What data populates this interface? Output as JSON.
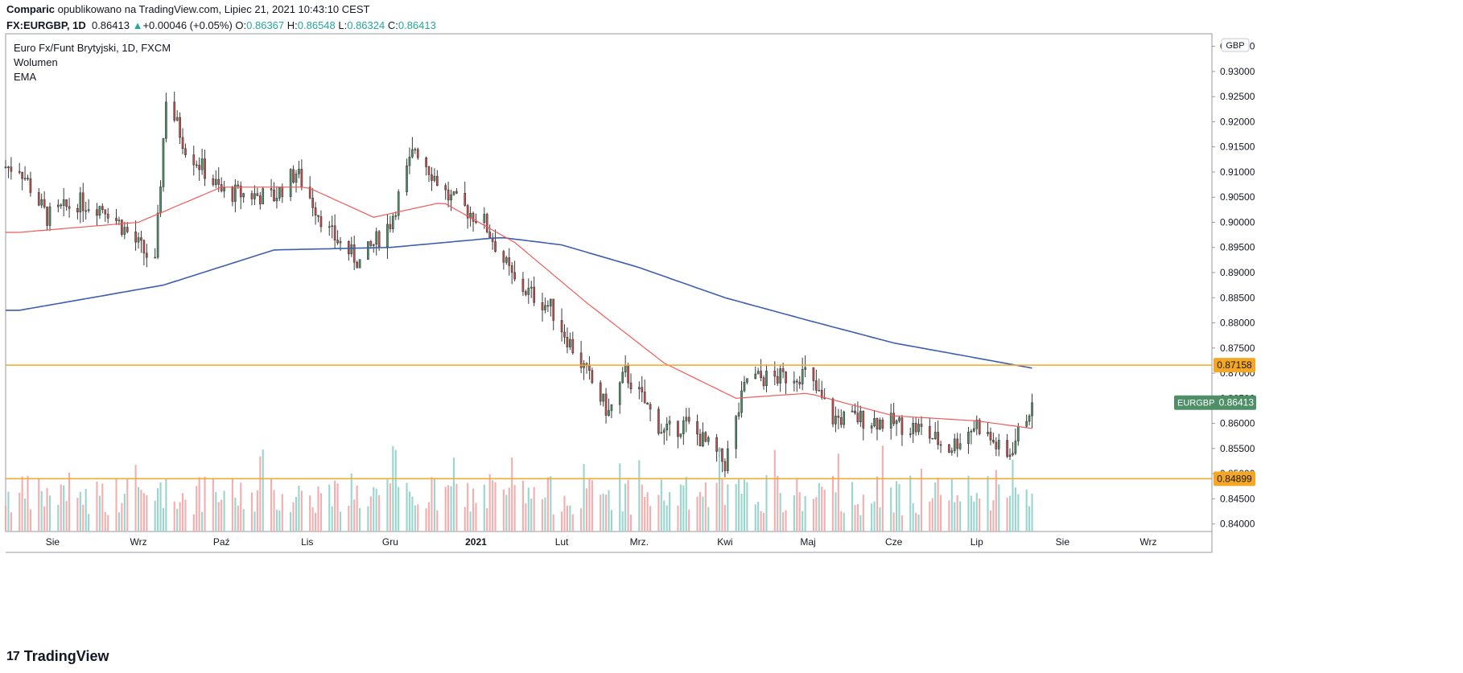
{
  "header": {
    "author": "Comparic",
    "published_text": "opublikowano na TradingView.com, Lipiec 21, 2021 10:43:10 CEST",
    "symbol": "FX:EURGBP, 1D",
    "last": "0.86413",
    "change_arrow": "▲",
    "change": "+0.00046 (+0.05%)",
    "o_label": "O:",
    "o": "0.86367",
    "h_label": "H:",
    "h": "0.86548",
    "l_label": "L:",
    "l": "0.86324",
    "c_label": "C:",
    "c": "0.86413"
  },
  "legend": {
    "instrument": "Euro Fx/Funt Brytyjski, 1D, FXCM",
    "volume": "Wolumen",
    "ema": "EMA"
  },
  "brand": {
    "logo": "17",
    "name": "TradingView"
  },
  "colors": {
    "up": "#4e8f67",
    "down": "#c0504d",
    "vol_up": "#8fd0c9",
    "vol_down": "#f2a6a6",
    "ema_fast": "#f05a5a",
    "ema_slow": "#3c5fb0",
    "hline": "#f5a623"
  },
  "chart_data": {
    "type": "candlestick",
    "currency": "GBP",
    "ylim": [
      0.8385,
      0.9375
    ],
    "y_ticks": [
      "0.93500",
      "0.93000",
      "0.92500",
      "0.92000",
      "0.91500",
      "0.91000",
      "0.90500",
      "0.90000",
      "0.89500",
      "0.89000",
      "0.88500",
      "0.88000",
      "0.87500",
      "0.87000",
      "0.86500",
      "0.86000",
      "0.85500",
      "0.85000",
      "0.84500",
      "0.84000"
    ],
    "x_ticks": [
      "Sie",
      "Wrz",
      "Paź",
      "Lis",
      "Gru",
      "2021",
      "Lut",
      "Mrz.",
      "Kwi",
      "Maj",
      "Cze",
      "Lip",
      "Sie",
      "Wrz"
    ],
    "price_anchors": [
      [
        "2020-07-20",
        0.911
      ],
      [
        "2020-07-30",
        0.901
      ],
      [
        "2020-08-10",
        0.904
      ],
      [
        "2020-08-20",
        0.903
      ],
      [
        "2020-08-28",
        0.898
      ],
      [
        "2020-09-07",
        0.8915
      ],
      [
        "2020-09-11",
        0.925
      ],
      [
        "2020-09-18",
        0.915
      ],
      [
        "2020-10-01",
        0.906
      ],
      [
        "2020-10-20",
        0.905
      ],
      [
        "2020-10-28",
        0.91
      ],
      [
        "2020-11-09",
        0.898
      ],
      [
        "2020-11-20",
        0.892
      ],
      [
        "2020-12-01",
        0.9
      ],
      [
        "2020-12-10",
        0.915
      ],
      [
        "2020-12-22",
        0.905
      ],
      [
        "2021-01-04",
        0.9
      ],
      [
        "2021-01-15",
        0.888
      ],
      [
        "2021-01-28",
        0.883
      ],
      [
        "2021-02-05",
        0.875
      ],
      [
        "2021-02-18",
        0.862
      ],
      [
        "2021-02-24",
        0.87
      ],
      [
        "2021-03-10",
        0.858
      ],
      [
        "2021-03-18",
        0.86
      ],
      [
        "2021-04-01",
        0.852
      ],
      [
        "2021-04-09",
        0.869
      ],
      [
        "2021-04-20",
        0.869
      ],
      [
        "2021-04-30",
        0.87
      ],
      [
        "2021-05-10",
        0.861
      ],
      [
        "2021-05-20",
        0.861
      ],
      [
        "2021-06-01",
        0.86
      ],
      [
        "2021-06-10",
        0.859
      ],
      [
        "2021-06-21",
        0.855
      ],
      [
        "2021-07-01",
        0.86
      ],
      [
        "2021-07-12",
        0.853
      ],
      [
        "2021-07-21",
        0.8641
      ]
    ],
    "ema_fast_anchors": [
      [
        "2020-07-20",
        0.898
      ],
      [
        "2020-09-01",
        0.9
      ],
      [
        "2020-10-01",
        0.907
      ],
      [
        "2020-11-01",
        0.907
      ],
      [
        "2020-11-25",
        0.901
      ],
      [
        "2020-12-20",
        0.904
      ],
      [
        "2021-01-15",
        0.896
      ],
      [
        "2021-02-10",
        0.884
      ],
      [
        "2021-03-10",
        0.872
      ],
      [
        "2021-04-05",
        0.865
      ],
      [
        "2021-05-01",
        0.866
      ],
      [
        "2021-06-01",
        0.8615
      ],
      [
        "2021-07-01",
        0.8605
      ],
      [
        "2021-07-21",
        0.859
      ]
    ],
    "ema_slow_anchors": [
      [
        "2020-07-20",
        0.8825
      ],
      [
        "2020-09-10",
        0.8875
      ],
      [
        "2020-10-20",
        0.8945
      ],
      [
        "2020-12-01",
        0.895
      ],
      [
        "2021-01-10",
        0.897
      ],
      [
        "2021-02-01",
        0.8955
      ],
      [
        "2021-03-01",
        0.891
      ],
      [
        "2021-04-01",
        0.885
      ],
      [
        "2021-05-01",
        0.8805
      ],
      [
        "2021-06-01",
        0.876
      ],
      [
        "2021-07-21",
        0.871
      ]
    ],
    "hlines": [
      {
        "value": 0.87158,
        "label": "0.87158"
      },
      {
        "value": 0.84899,
        "label": "0.84899"
      }
    ],
    "last_price_label": {
      "symbol": "EURGBP",
      "value": "0.86413"
    },
    "volume_ylim": [
      0,
      1
    ]
  }
}
